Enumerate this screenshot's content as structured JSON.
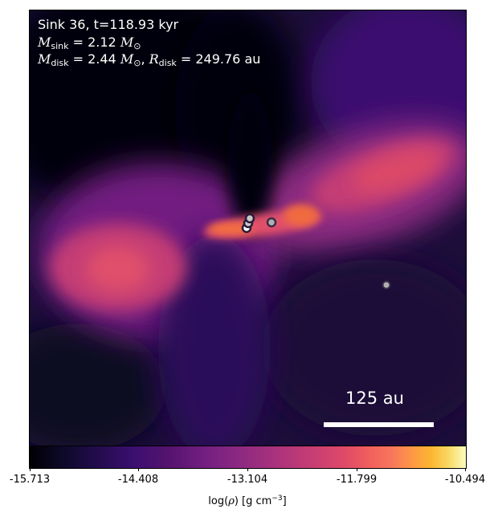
{
  "annotation": {
    "sink_line": "Sink 36, t=118.93 kyr",
    "msink_symbol": "M",
    "msink_sub": "sink",
    "msink_value": " = 2.12 ",
    "msink_unit": "M",
    "msink_unit_sub": "⊙",
    "mdisk_symbol": "M",
    "mdisk_sub": "disk",
    "mdisk_value": " = 2.44 ",
    "mdisk_unit": "M",
    "mdisk_unit_sub": "⊙",
    "rdisk_sep": ", ",
    "rdisk_symbol": "R",
    "rdisk_sub": "disk",
    "rdisk_value": " = 249.76 au"
  },
  "scalebar": {
    "label": "125 au",
    "length_au": 125
  },
  "colorbar": {
    "colormap": "inferno",
    "range": [
      -15.713,
      -10.494
    ],
    "ticks": [
      "-15.713",
      "-14.408",
      "-13.104",
      "-11.799",
      "-10.494"
    ],
    "label_prefix": "log(",
    "label_rho": "ρ",
    "label_mid": ") [g cm",
    "label_exp": "−3",
    "label_suffix": "]"
  },
  "colors": {
    "background_dark": "#000004",
    "disk_core": "#f1605d",
    "disk_outer": "#c43c75",
    "sink_fill": "#b0b0b0",
    "sink_edge": "#3a2a4a"
  },
  "sinks": {
    "count": 5,
    "positions_au": [
      {
        "x": 0,
        "y": 0
      },
      {
        "x": 1,
        "y": -3
      },
      {
        "x": 1,
        "y": -6
      },
      {
        "x": 14,
        "y": -4
      },
      {
        "x": 80,
        "y": -35
      }
    ]
  }
}
